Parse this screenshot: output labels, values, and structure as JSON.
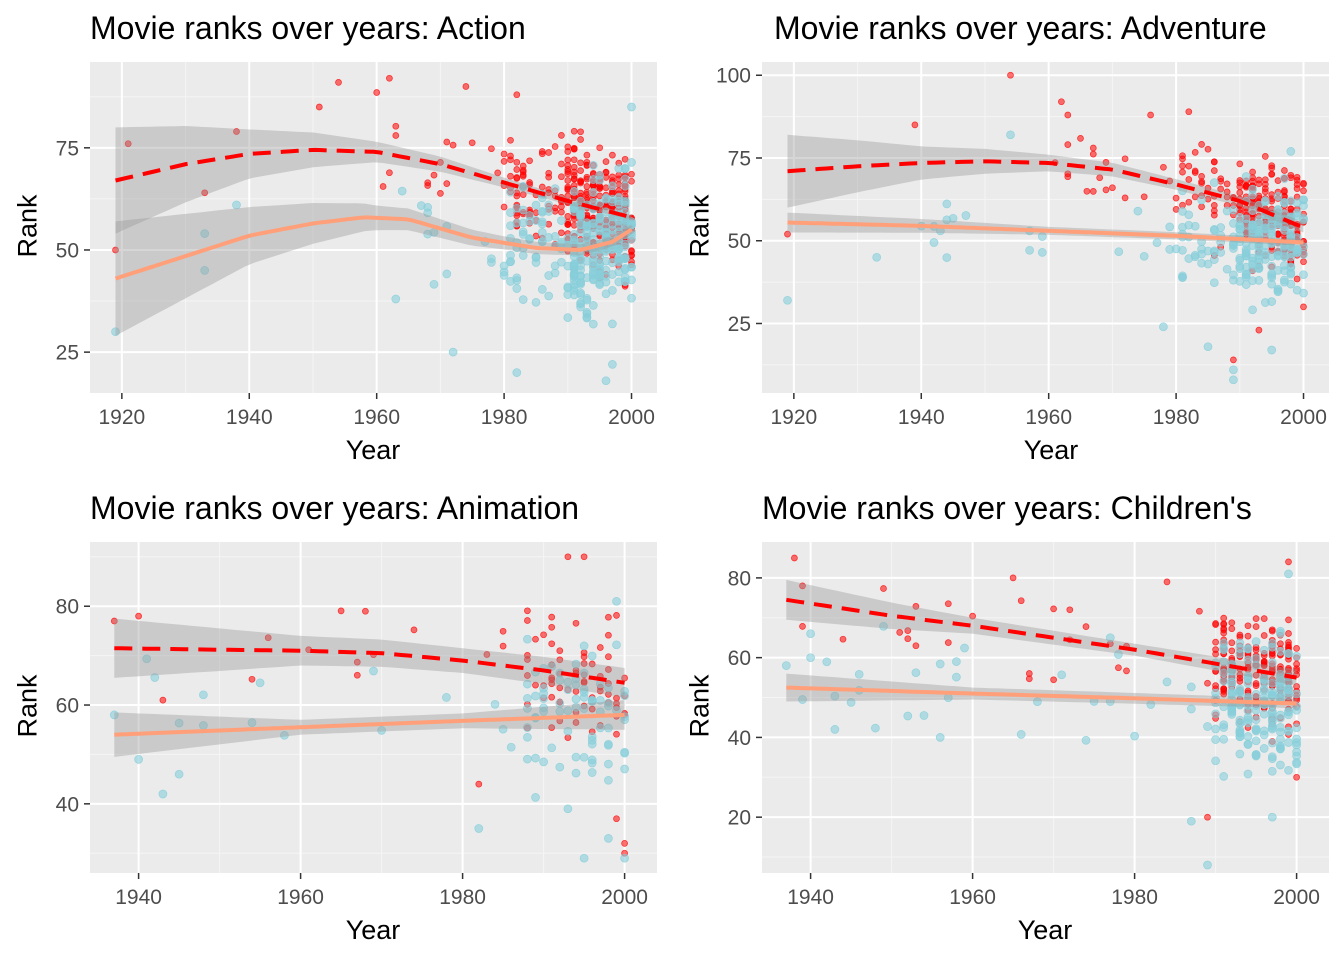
{
  "colors": {
    "panel_bg": "#EBEBEB",
    "grid_major": "#FFFFFF",
    "grid_minor": "#F5F5F5",
    "tick_text": "#4D4D4D",
    "tick_mark": "#333333",
    "points_high": "#FF0000",
    "points_low": "#87CEDB",
    "smooth_high": "#FF0000",
    "smooth_low": "#FFA07A",
    "ribbon": "#999999"
  },
  "chart_data": [
    {
      "type": "scatter",
      "title": "Movie ranks over years: Action",
      "xlabel": "Year",
      "ylabel": "Rank",
      "xlim": [
        1915,
        2004
      ],
      "ylim": [
        15,
        96
      ],
      "xticks": [
        1920,
        1940,
        1960,
        1980,
        2000
      ],
      "yticks": [
        25,
        50,
        75
      ],
      "grid": true,
      "legend": "none",
      "seed": 11,
      "point_counts": [
        380,
        300
      ],
      "series": [
        {
          "role": "high",
          "smooth": [
            [
              1919,
              67
            ],
            [
              1930,
              71
            ],
            [
              1940,
              73.5
            ],
            [
              1950,
              74.5
            ],
            [
              1960,
              74
            ],
            [
              1970,
              71
            ],
            [
              1980,
              66.5
            ],
            [
              1990,
              62
            ],
            [
              2000,
              58
            ]
          ],
          "band_half": [
            [
              1919,
              13
            ],
            [
              1940,
              6
            ],
            [
              1960,
              2.5
            ],
            [
              1980,
              1.2
            ],
            [
              2000,
              0.6
            ]
          ],
          "anchors": [
            [
              1919,
              50
            ],
            [
              1921,
              76
            ],
            [
              1933,
              64
            ],
            [
              1938,
              79
            ],
            [
              1951,
              85
            ],
            [
              1954,
              91
            ],
            [
              1962,
              92
            ],
            [
              1974,
              90
            ],
            [
              1982,
              88
            ],
            [
              1990,
              67
            ],
            [
              1995,
              75
            ],
            [
              1998,
              46
            ]
          ],
          "cluster": [
            {
              "from": 1960,
              "to": 2000,
              "weight": 1
            },
            {
              "from": 1980,
              "to": 2000,
              "weight": 3
            },
            {
              "from": 1990,
              "to": 2000,
              "weight": 6
            }
          ],
          "spread_sd": 10
        },
        {
          "role": "low",
          "smooth": [
            [
              1919,
              43
            ],
            [
              1930,
              48.5
            ],
            [
              1940,
              53.5
            ],
            [
              1950,
              56.5
            ],
            [
              1958,
              58
            ],
            [
              1965,
              57.5
            ],
            [
              1975,
              53
            ],
            [
              1985,
              50.5
            ],
            [
              1992,
              50
            ],
            [
              1997,
              52
            ],
            [
              2000,
              55
            ]
          ],
          "band_half": [
            [
              1919,
              14
            ],
            [
              1940,
              7
            ],
            [
              1960,
              3
            ],
            [
              1980,
              1.6
            ],
            [
              2000,
              1.2
            ]
          ],
          "anchors": [
            [
              1919,
              30
            ],
            [
              1933,
              45
            ],
            [
              1933,
              54
            ],
            [
              1938,
              61
            ],
            [
              1972,
              25
            ],
            [
              1982,
              20
            ],
            [
              1996,
              18
            ],
            [
              1997,
              22
            ],
            [
              1963,
              38
            ],
            [
              2000,
              85
            ]
          ],
          "cluster": [
            {
              "from": 1960,
              "to": 2000,
              "weight": 1
            },
            {
              "from": 1980,
              "to": 2000,
              "weight": 3
            },
            {
              "from": 1990,
              "to": 2000,
              "weight": 5
            }
          ],
          "spread_sd": 12
        }
      ]
    },
    {
      "type": "scatter",
      "title": "Movie ranks over years: Adventure",
      "xlabel": "Year",
      "ylabel": "Rank",
      "xlim": [
        1915,
        2004
      ],
      "ylim": [
        4,
        104
      ],
      "xticks": [
        1920,
        1940,
        1960,
        1980,
        2000
      ],
      "yticks": [
        25,
        50,
        75,
        100
      ],
      "grid": true,
      "legend": "none",
      "seed": 23,
      "point_counts": [
        260,
        230
      ],
      "series": [
        {
          "role": "high",
          "smooth": [
            [
              1919,
              71
            ],
            [
              1930,
              72.5
            ],
            [
              1940,
              73.5
            ],
            [
              1950,
              74
            ],
            [
              1960,
              73.5
            ],
            [
              1970,
              71.5
            ],
            [
              1980,
              67
            ],
            [
              1990,
              62
            ],
            [
              2000,
              54
            ]
          ],
          "band_half": [
            [
              1919,
              11
            ],
            [
              1940,
              5
            ],
            [
              1960,
              2.5
            ],
            [
              1980,
              1.6
            ],
            [
              2000,
              1.5
            ]
          ],
          "anchors": [
            [
              1919,
              52
            ],
            [
              1939,
              85
            ],
            [
              1954,
              100
            ],
            [
              1962,
              92
            ],
            [
              1963,
              88
            ],
            [
              1976,
              88
            ],
            [
              1982,
              89
            ],
            [
              1989,
              14
            ],
            [
              1993,
              23
            ],
            [
              2000,
              30
            ]
          ],
          "cluster": [
            {
              "from": 1960,
              "to": 2000,
              "weight": 1
            },
            {
              "from": 1980,
              "to": 2000,
              "weight": 3
            },
            {
              "from": 1990,
              "to": 2000,
              "weight": 5
            }
          ],
          "spread_sd": 11
        },
        {
          "role": "low",
          "smooth": [
            [
              1919,
              55.5
            ],
            [
              1940,
              54.5
            ],
            [
              1960,
              53
            ],
            [
              1980,
              51.5
            ],
            [
              2000,
              49.5
            ]
          ],
          "band_half": [
            [
              1919,
              3
            ],
            [
              1960,
              1.2
            ],
            [
              2000,
              1
            ]
          ],
          "anchors": [
            [
              1919,
              32
            ],
            [
              1933,
              45
            ],
            [
              1954,
              82
            ],
            [
              1978,
              24
            ],
            [
              1985,
              18
            ],
            [
              1989,
              8
            ],
            [
              1989,
              11
            ],
            [
              1995,
              17
            ],
            [
              1998,
              77
            ]
          ],
          "cluster": [
            {
              "from": 1940,
              "to": 2000,
              "weight": 1
            },
            {
              "from": 1980,
              "to": 2000,
              "weight": 3
            },
            {
              "from": 1990,
              "to": 2000,
              "weight": 5
            }
          ],
          "spread_sd": 11
        }
      ]
    },
    {
      "type": "scatter",
      "title": "Movie ranks over years: Animation",
      "xlabel": "Year",
      "ylabel": "Rank",
      "xlim": [
        1934,
        2004
      ],
      "ylim": [
        26,
        93
      ],
      "xticks": [
        1940,
        1960,
        1980,
        2000
      ],
      "yticks": [
        40,
        60,
        80
      ],
      "grid": true,
      "legend": "none",
      "seed": 37,
      "point_counts": [
        80,
        90
      ],
      "series": [
        {
          "role": "high",
          "smooth": [
            [
              1937,
              71.5
            ],
            [
              1950,
              71.2
            ],
            [
              1960,
              71
            ],
            [
              1970,
              70.5
            ],
            [
              1980,
              69
            ],
            [
              1990,
              67
            ],
            [
              2000,
              64.5
            ]
          ],
          "band_half": [
            [
              1937,
              6
            ],
            [
              1960,
              3
            ],
            [
              1980,
              2.5
            ],
            [
              2000,
              3
            ]
          ],
          "anchors": [
            [
              1937,
              77
            ],
            [
              1940,
              78
            ],
            [
              1943,
              61
            ],
            [
              1968,
              79
            ],
            [
              1982,
              44
            ],
            [
              1993,
              90
            ],
            [
              1995,
              90
            ],
            [
              1999,
              37
            ],
            [
              2000,
              30
            ],
            [
              2000,
              32
            ]
          ],
          "cluster": [
            {
              "from": 1937,
              "to": 2000,
              "weight": 1
            },
            {
              "from": 1988,
              "to": 2000,
              "weight": 4
            }
          ],
          "spread_sd": 9
        },
        {
          "role": "low",
          "smooth": [
            [
              1937,
              54
            ],
            [
              1960,
              55.5
            ],
            [
              1980,
              56.8
            ],
            [
              2000,
              58
            ]
          ],
          "band_half": [
            [
              1937,
              4.5
            ],
            [
              1960,
              1.5
            ],
            [
              1980,
              1.5
            ],
            [
              2000,
              3
            ]
          ],
          "anchors": [
            [
              1937,
              58
            ],
            [
              1940,
              49
            ],
            [
              1943,
              42
            ],
            [
              1945,
              46
            ],
            [
              1982,
              35
            ],
            [
              1993,
              39
            ],
            [
              1995,
              29
            ],
            [
              1998,
              33
            ],
            [
              2000,
              29
            ],
            [
              1999,
              81
            ]
          ],
          "cluster": [
            {
              "from": 1937,
              "to": 2000,
              "weight": 1
            },
            {
              "from": 1988,
              "to": 2000,
              "weight": 4
            }
          ],
          "spread_sd": 10
        }
      ]
    },
    {
      "type": "scatter",
      "title": "Movie ranks over years: Children's",
      "xlabel": "Year",
      "ylabel": "Rank",
      "xlim": [
        1934,
        2004
      ],
      "ylim": [
        6,
        89
      ],
      "xticks": [
        1940,
        1960,
        1980,
        2000
      ],
      "yticks": [
        20,
        40,
        60,
        80
      ],
      "grid": true,
      "legend": "none",
      "seed": 53,
      "point_counts": [
        230,
        210
      ],
      "series": [
        {
          "role": "high",
          "smooth": [
            [
              1937,
              74.5
            ],
            [
              1950,
              70.5
            ],
            [
              1960,
              68
            ],
            [
              1970,
              65
            ],
            [
              1980,
              62
            ],
            [
              1990,
              58.5
            ],
            [
              2000,
              55
            ]
          ],
          "band_half": [
            [
              1937,
              5
            ],
            [
              1960,
              2
            ],
            [
              1980,
              1.5
            ],
            [
              2000,
              2
            ]
          ],
          "anchors": [
            [
              1938,
              85
            ],
            [
              1939,
              78
            ],
            [
              1965,
              80
            ],
            [
              1989,
              20
            ],
            [
              1999,
              84
            ],
            [
              2000,
              30
            ],
            [
              1984,
              79
            ]
          ],
          "cluster": [
            {
              "from": 1937,
              "to": 2000,
              "weight": 1
            },
            {
              "from": 1990,
              "to": 2000,
              "weight": 6
            }
          ],
          "spread_sd": 10
        },
        {
          "role": "low",
          "smooth": [
            [
              1937,
              52.5
            ],
            [
              1960,
              51
            ],
            [
              1980,
              49.8
            ],
            [
              2000,
              48.5
            ]
          ],
          "band_half": [
            [
              1937,
              3.5
            ],
            [
              1960,
              1.5
            ],
            [
              2000,
              1.2
            ]
          ],
          "anchors": [
            [
              1937,
              58
            ],
            [
              1940,
              66
            ],
            [
              1943,
              42
            ],
            [
              1987,
              19
            ],
            [
              1989,
              8
            ],
            [
              1997,
              20
            ],
            [
              1999,
              81
            ]
          ],
          "cluster": [
            {
              "from": 1937,
              "to": 2000,
              "weight": 1
            },
            {
              "from": 1990,
              "to": 2000,
              "weight": 6
            }
          ],
          "spread_sd": 12
        }
      ]
    }
  ]
}
